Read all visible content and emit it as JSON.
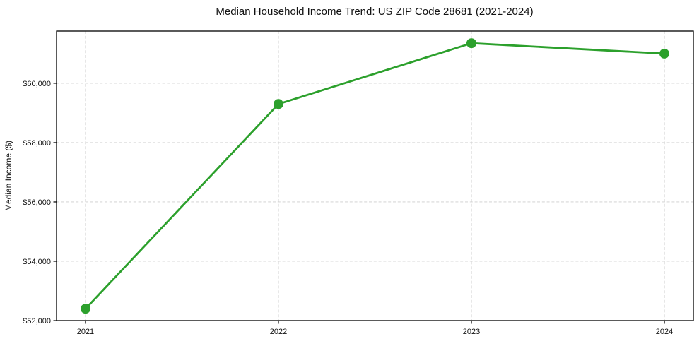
{
  "figure": {
    "background": "#ffffff"
  },
  "chart_data": {
    "type": "line",
    "title": "Median Household Income Trend: US ZIP Code 28681 (2021-2024)",
    "xlabel": "",
    "ylabel": "Median Income ($)",
    "x": [
      2021,
      2022,
      2023,
      2024
    ],
    "series": [
      {
        "name": "Median Household Income",
        "values": [
          52400,
          59300,
          61350,
          61000
        ]
      }
    ],
    "xlim": [
      2020.85,
      2024.15
    ],
    "ylim": [
      52000,
      61760
    ],
    "xticks": [
      2021,
      2022,
      2023,
      2024
    ],
    "xtick_labels": [
      "2021",
      "2022",
      "2023",
      "2024"
    ],
    "yticks": [
      52000,
      54000,
      56000,
      58000,
      60000
    ],
    "ytick_labels": [
      "$52,000",
      "$54,000",
      "$56,000",
      "$58,000",
      "$60,000"
    ],
    "grid": true,
    "grid_style": "dashed",
    "legend": false,
    "marker": "circle",
    "colors": {
      "line": "#2ca02c",
      "marker": "#2ca02c",
      "grid": "#cccccc",
      "axis": "#000000",
      "text": "#111111",
      "background": "#ffffff"
    }
  }
}
